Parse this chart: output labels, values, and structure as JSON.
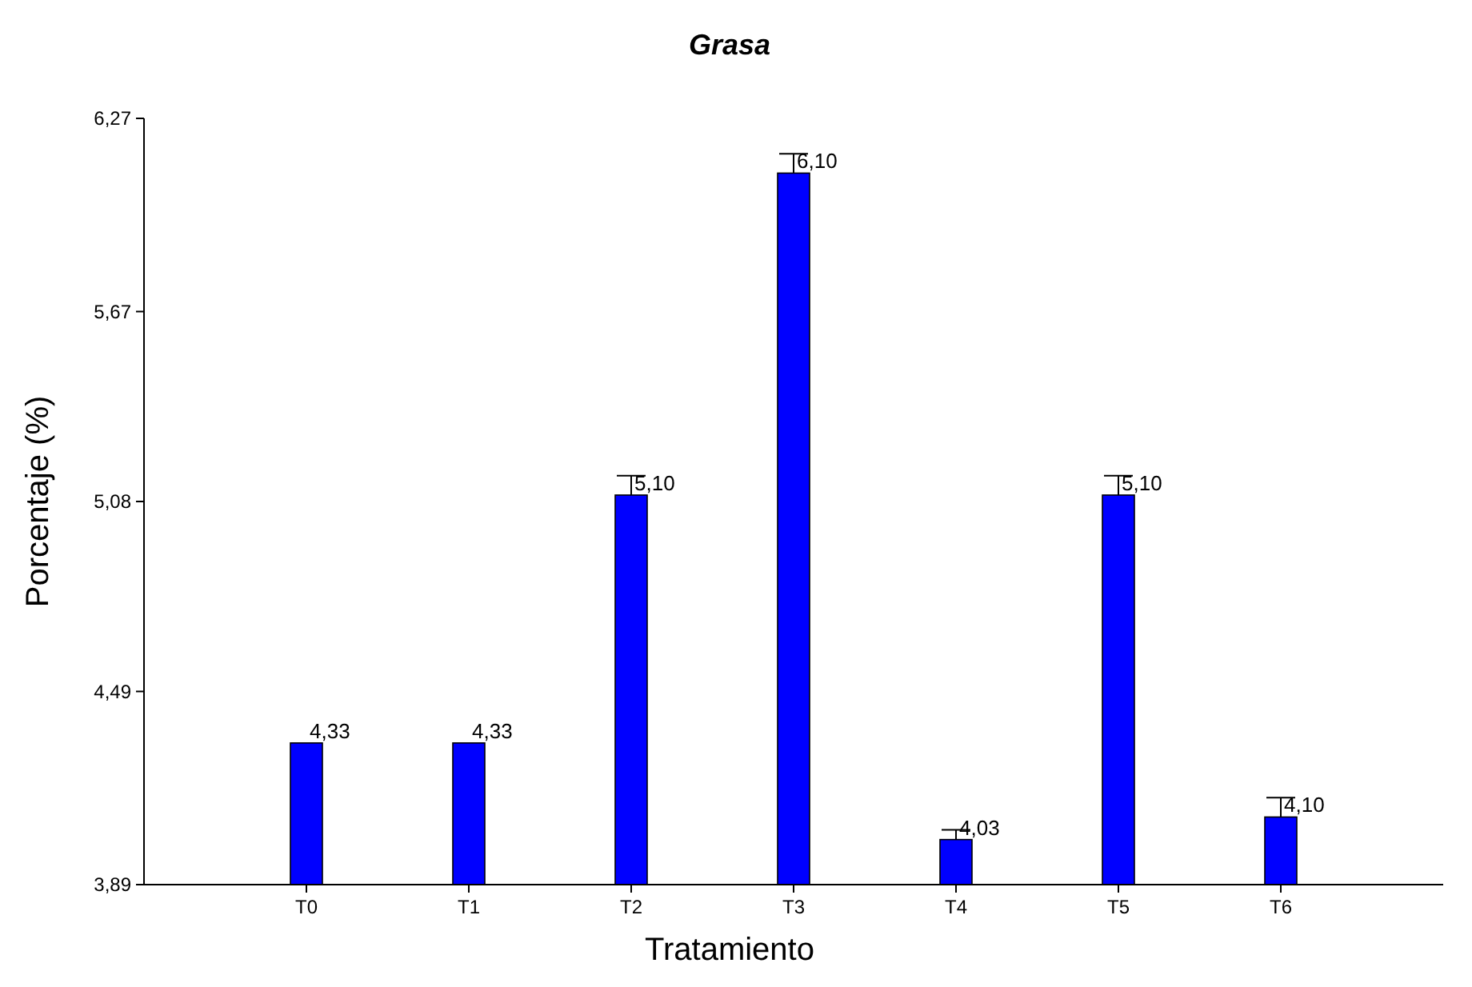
{
  "chart_data": {
    "type": "bar",
    "title": "Grasa",
    "xlabel": "Tratamiento",
    "ylabel": "Porcentaje (%)",
    "categories": [
      "T0",
      "T1",
      "T2",
      "T3",
      "T4",
      "T5",
      "T6"
    ],
    "values": [
      4.33,
      4.33,
      5.1,
      6.1,
      4.03,
      5.1,
      4.1
    ],
    "value_labels": [
      "4,33",
      "4,33",
      "5,10",
      "6,10",
      "4,03",
      "5,10",
      "4,10"
    ],
    "errors": [
      null,
      null,
      [
        5.1,
        5.16
      ],
      [
        6.1,
        6.16
      ],
      [
        4.03,
        4.06
      ],
      [
        5.1,
        5.16
      ],
      [
        4.1,
        4.16
      ]
    ],
    "color": "#0000ff",
    "ylim": [
      3.89,
      6.27
    ],
    "yticks": [
      {
        "value": 3.89,
        "label": "3,89"
      },
      {
        "value": 4.49,
        "label": "4,49"
      },
      {
        "value": 5.08,
        "label": "5,08"
      },
      {
        "value": 5.67,
        "label": "5,67"
      },
      {
        "value": 6.27,
        "label": "6,27"
      }
    ],
    "grid": false,
    "legend": false
  }
}
